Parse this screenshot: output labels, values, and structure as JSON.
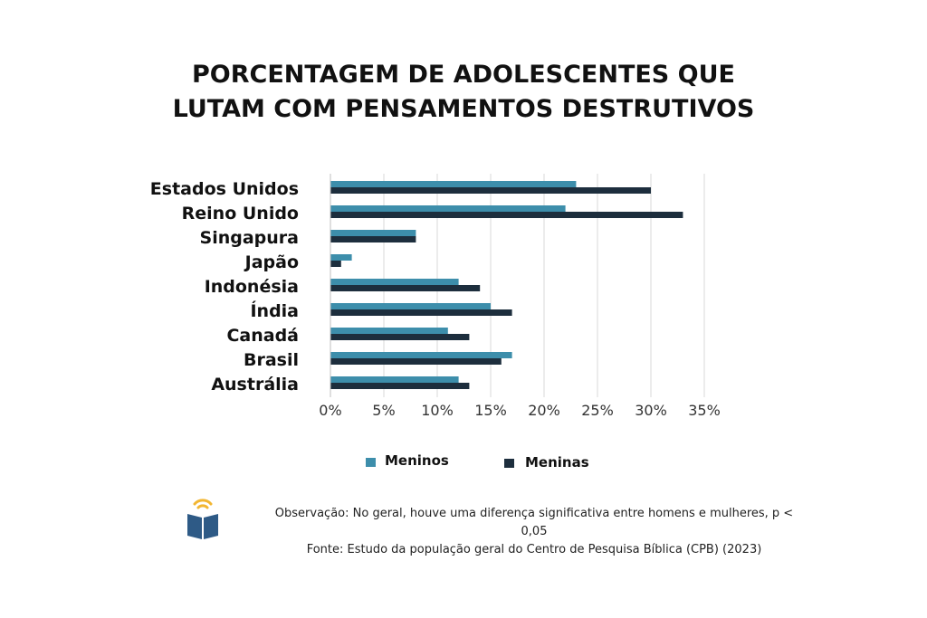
{
  "title_lines": [
    "PORCENTAGEM DE ADOLESCENTES QUE",
    "LUTAM COM PENSAMENTOS DESTRUTIVOS"
  ],
  "chart_data": {
    "type": "bar",
    "orientation": "horizontal",
    "title": "PORCENTAGEM DE ADOLESCENTES QUE LUTAM COM PENSAMENTOS DESTRUTIVOS",
    "categories": [
      "Estados Unidos",
      "Reino Unido",
      "Singapura",
      "Japão",
      "Indonésia",
      "Índia",
      "Canadá",
      "Brasil",
      "Austrália"
    ],
    "series": [
      {
        "name": "Meninos",
        "color": "#3d8eab",
        "values": [
          23,
          22,
          8,
          2,
          12,
          15,
          11,
          17,
          12
        ]
      },
      {
        "name": "Meninas",
        "color": "#1d2e3d",
        "values": [
          30,
          33,
          8,
          1,
          14,
          17,
          13,
          16,
          13
        ]
      }
    ],
    "xlim": [
      0,
      35
    ],
    "xticks": [
      "0%",
      "5%",
      "10%",
      "15%",
      "20%",
      "25%",
      "30%",
      "35%"
    ],
    "grid": "vertical",
    "legend_position": "bottom"
  },
  "notes": {
    "observation": "Observação: No geral, houve uma diferença significativa entre homens e mulheres, p < 0,05",
    "source": "Fonte: Estudo da população geral do Centro de Pesquisa Bíblica (CPB) (2023)"
  },
  "logo": {
    "icon": "book-signal-logo-icon",
    "colors": {
      "book": "#2e5a86",
      "signal": "#f2b632"
    }
  }
}
